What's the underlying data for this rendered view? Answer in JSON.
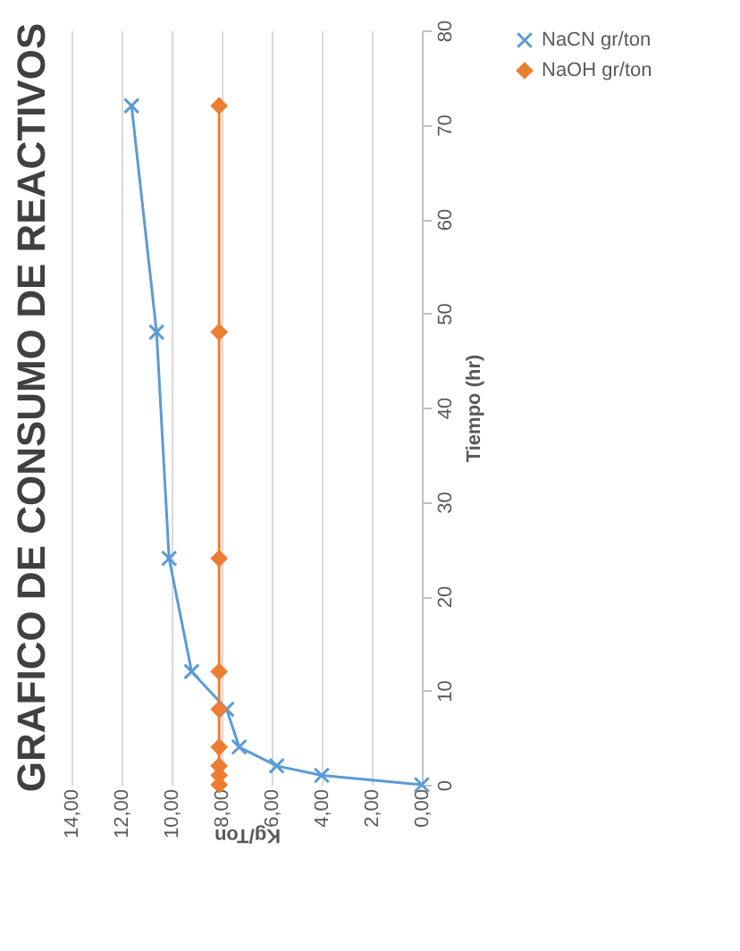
{
  "chart_data": {
    "type": "line",
    "title": "GRAFICO DE CONSUMO DE REACTIVOS",
    "xlabel": "Kg/Ton",
    "ylabel": "Tiempo (hr)",
    "series": [
      {
        "name": "NaCN gr/ton",
        "color": "#5b9bd5",
        "marker": "cross",
        "x": [
          0,
          4.0,
          5.8,
          7.3,
          7.8,
          9.2,
          10.1,
          10.6,
          11.6
        ],
        "values": [
          0,
          1,
          2,
          4,
          8,
          12,
          24,
          48,
          72
        ]
      },
      {
        "name": "NaOH gr/ton",
        "color": "#ed7d31",
        "marker": "diamond",
        "x": [
          8.1,
          8.1,
          8.1,
          8.1,
          8.1,
          8.1,
          8.1,
          8.1,
          8.1
        ],
        "values": [
          0,
          1,
          2,
          4,
          8,
          12,
          24,
          48,
          72
        ]
      }
    ],
    "ylim": [
      0,
      80
    ],
    "yticks": [
      0,
      10,
      20,
      30,
      40,
      50,
      60,
      70,
      80
    ],
    "xlim": [
      14,
      0
    ],
    "xticks": [
      {
        "value": 14,
        "label": "14,00"
      },
      {
        "value": 12,
        "label": "12,00"
      },
      {
        "value": 10,
        "label": "10,00"
      },
      {
        "value": 8,
        "label": "8,00"
      },
      {
        "value": 6,
        "label": "6,00"
      },
      {
        "value": 4,
        "label": "4,00"
      },
      {
        "value": 2,
        "label": "2,00"
      },
      {
        "value": 0,
        "label": "0,00"
      }
    ],
    "grid": "x",
    "legend": "right",
    "line_style": "solid"
  }
}
